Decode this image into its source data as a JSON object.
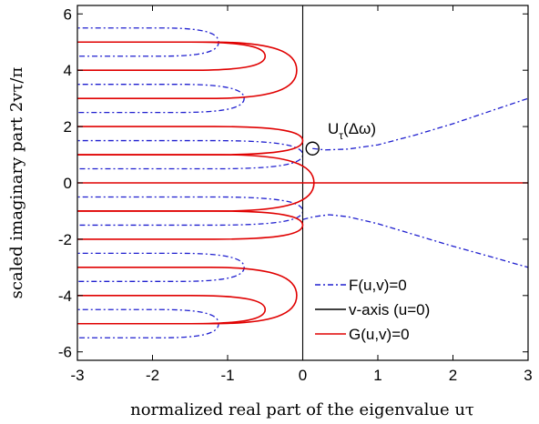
{
  "chart_data": {
    "type": "line",
    "xlabel": "normalized real part of the eigenvalue uτ",
    "ylabel": "scaled imaginary part 2vτ/π",
    "xlim": [
      -3,
      3
    ],
    "ylim": [
      -6.3,
      6.3
    ],
    "xticks": [
      -3,
      -2,
      -1,
      0,
      1,
      2,
      3
    ],
    "xtick_labels": [
      "-3",
      "-2",
      "-1",
      "0",
      "1",
      "2",
      "3"
    ],
    "yticks": [
      -6,
      -4,
      -2,
      0,
      2,
      4,
      6
    ],
    "ytick_labels": [
      "-6",
      "-4",
      "-2",
      "0",
      "2",
      "4",
      "6"
    ],
    "grid": false,
    "legend_position": "bottom-right",
    "legend": [
      {
        "label": "F(u,v)=0",
        "color": "#1f1fcf",
        "style": "dash-dot"
      },
      {
        "label": "v-axis (u=0)",
        "color": "#000000",
        "style": "solid"
      },
      {
        "label": "G(u,v)=0",
        "color": "#e00000",
        "style": "solid"
      }
    ],
    "annotation": {
      "label": "U",
      "subscript": "τ",
      "suffix": "(Δω)",
      "x": 0.13,
      "y": 1.22
    },
    "series": [
      {
        "name": "F(u,v)=0",
        "color": "#1f1fcf",
        "style": "dash-dot",
        "loops": [
          {
            "tip_x": 0.0,
            "y_low": 0.5,
            "y_high": 1.5
          },
          {
            "tip_x": -0.78,
            "y_low": 2.5,
            "y_high": 3.5
          },
          {
            "tip_x": -1.12,
            "y_low": 4.5,
            "y_high": 5.5
          },
          {
            "tip_x": 0.0,
            "y_low": -1.5,
            "y_high": -0.5
          },
          {
            "tip_x": -0.78,
            "y_low": -3.5,
            "y_high": -2.5
          },
          {
            "tip_x": -1.12,
            "y_low": -5.5,
            "y_high": -4.5
          }
        ],
        "branches": [
          {
            "x": [
              0.13,
              0.3,
              0.6,
              1.0,
              1.5,
              2.0,
              2.5,
              3.0
            ],
            "y": [
              1.22,
              1.17,
              1.2,
              1.35,
              1.7,
              2.1,
              2.55,
              3.0
            ]
          },
          {
            "x": [
              0.0,
              0.15,
              0.35,
              0.6,
              1.0,
              1.5,
              2.0,
              2.5,
              3.0
            ],
            "y": [
              -1.3,
              -1.2,
              -1.13,
              -1.2,
              -1.45,
              -1.85,
              -2.25,
              -2.62,
              -3.0
            ]
          }
        ]
      },
      {
        "name": "v-axis (u=0)",
        "color": "#000000",
        "style": "solid",
        "x": [
          0,
          0
        ],
        "y": [
          -6.3,
          6.3
        ]
      },
      {
        "name": "G(u,v)=0",
        "color": "#e00000",
        "style": "solid",
        "loops": [
          {
            "tip_x": 0.15,
            "y_low": -1.0,
            "y_high": 1.0
          },
          {
            "tip_x": -0.08,
            "y_low": 3.0,
            "y_high": 5.0
          },
          {
            "tip_x": -0.5,
            "y_low": 4.0,
            "y_high": 5.0
          },
          {
            "tip_x": 0.0,
            "y_low": 1.0,
            "y_high": 2.0
          },
          {
            "tip_x": -0.08,
            "y_low": -5.0,
            "y_high": -3.0
          },
          {
            "tip_x": -0.5,
            "y_low": -5.0,
            "y_high": -4.0
          },
          {
            "tip_x": 0.0,
            "y_low": -2.0,
            "y_high": -1.0
          }
        ],
        "branches": [
          {
            "x": [
              -3.0,
              3.0
            ],
            "y": [
              0,
              0
            ]
          }
        ]
      }
    ]
  }
}
